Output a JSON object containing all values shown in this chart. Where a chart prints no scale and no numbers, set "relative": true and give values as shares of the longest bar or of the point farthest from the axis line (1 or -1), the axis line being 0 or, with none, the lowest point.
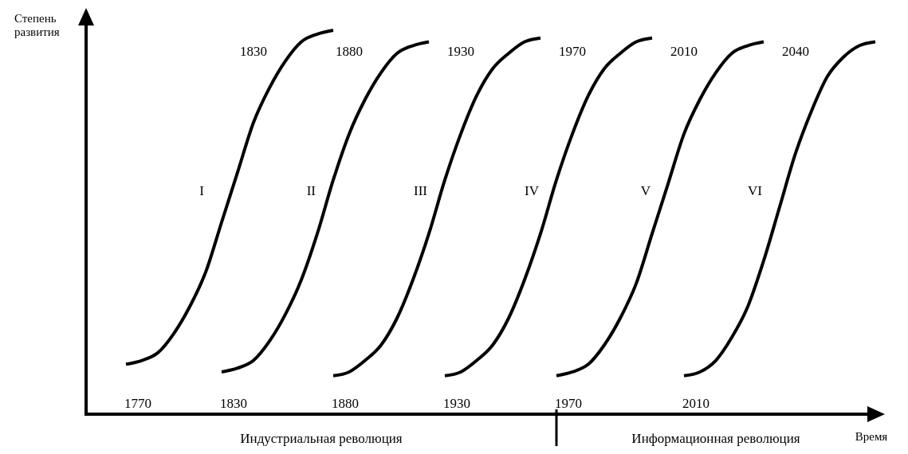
{
  "chart_data": {
    "type": "line",
    "relative": true,
    "xlabel": "Время",
    "ylabel": "Степень развития",
    "categories": [
      null,
      null,
      null,
      null,
      null,
      null,
      null,
      null,
      null,
      null,
      null,
      null,
      null,
      null,
      null,
      null,
      null,
      null,
      null,
      null,
      null,
      null,
      null,
      null,
      null,
      null,
      null,
      null,
      null,
      null,
      null,
      null,
      null,
      null,
      null,
      null,
      null,
      null,
      null,
      null,
      null,
      null,
      null,
      null,
      null,
      null,
      null,
      null,
      null,
      null
    ],
    "series": [
      {
        "name": "I",
        "color": "#000000",
        "values": [
          null,
          null,
          0.13,
          0.14,
          0.16,
          0.21,
          0.28,
          0.37,
          0.5,
          0.63,
          0.76,
          0.85,
          0.92,
          0.97,
          0.99,
          1,
          null,
          null,
          null,
          null,
          null,
          null,
          null,
          null,
          null,
          null,
          null,
          null,
          null,
          null,
          null,
          null,
          null,
          null,
          null,
          null,
          null,
          null,
          null,
          null,
          null,
          null,
          null,
          null,
          null,
          null,
          null,
          null,
          null,
          null
        ]
      },
      {
        "name": "II",
        "color": "#000000",
        "values": [
          null,
          null,
          null,
          null,
          null,
          null,
          null,
          null,
          0.11,
          0.12,
          0.14,
          0.19,
          0.26,
          0.35,
          0.47,
          0.61,
          0.73,
          0.82,
          0.89,
          0.94,
          0.96,
          0.97,
          null,
          null,
          null,
          null,
          null,
          null,
          null,
          null,
          null,
          null,
          null,
          null,
          null,
          null,
          null,
          null,
          null,
          null,
          null,
          null,
          null,
          null,
          null,
          null,
          null,
          null,
          null,
          null
        ]
      },
      {
        "name": "III",
        "color": "#000000",
        "values": [
          null,
          null,
          null,
          null,
          null,
          null,
          null,
          null,
          null,
          null,
          null,
          null,
          null,
          null,
          null,
          0.1,
          0.11,
          0.14,
          0.18,
          0.25,
          0.35,
          0.47,
          0.61,
          0.73,
          0.83,
          0.9,
          0.94,
          0.97,
          0.98,
          null,
          null,
          null,
          null,
          null,
          null,
          null,
          null,
          null,
          null,
          null,
          null,
          null,
          null,
          null,
          null,
          null,
          null,
          null,
          null,
          null
        ]
      },
      {
        "name": "IV",
        "color": "#000000",
        "values": [
          null,
          null,
          null,
          null,
          null,
          null,
          null,
          null,
          null,
          null,
          null,
          null,
          null,
          null,
          null,
          null,
          null,
          null,
          null,
          null,
          null,
          null,
          0.1,
          0.11,
          0.14,
          0.18,
          0.25,
          0.35,
          0.47,
          0.61,
          0.73,
          0.83,
          0.9,
          0.94,
          0.97,
          0.98,
          null,
          null,
          null,
          null,
          null,
          null,
          null,
          null,
          null,
          null,
          null,
          null,
          null,
          null
        ]
      },
      {
        "name": "V",
        "color": "#000000",
        "values": [
          null,
          null,
          null,
          null,
          null,
          null,
          null,
          null,
          null,
          null,
          null,
          null,
          null,
          null,
          null,
          null,
          null,
          null,
          null,
          null,
          null,
          null,
          null,
          null,
          null,
          null,
          null,
          null,
          null,
          0.1,
          0.11,
          0.13,
          0.18,
          0.25,
          0.34,
          0.47,
          0.6,
          0.73,
          0.82,
          0.89,
          0.94,
          0.96,
          0.97,
          null,
          null,
          null,
          null,
          null,
          null,
          null
        ]
      },
      {
        "name": "VI",
        "color": "#000000",
        "values": [
          null,
          null,
          null,
          null,
          null,
          null,
          null,
          null,
          null,
          null,
          null,
          null,
          null,
          null,
          null,
          null,
          null,
          null,
          null,
          null,
          null,
          null,
          null,
          null,
          null,
          null,
          null,
          null,
          null,
          null,
          null,
          null,
          null,
          null,
          null,
          null,
          null,
          0.1,
          0.11,
          0.14,
          0.2,
          0.28,
          0.4,
          0.54,
          0.68,
          0.79,
          0.88,
          0.93,
          0.96,
          0.97
        ]
      }
    ],
    "annotations": [
      "1770",
      "1830",
      "1880",
      "1930",
      "1970",
      "2010",
      "1830",
      "1880",
      "1930",
      "1970",
      "2010",
      "2040",
      "Индустриальная революция",
      "Информационная революция"
    ]
  }
}
